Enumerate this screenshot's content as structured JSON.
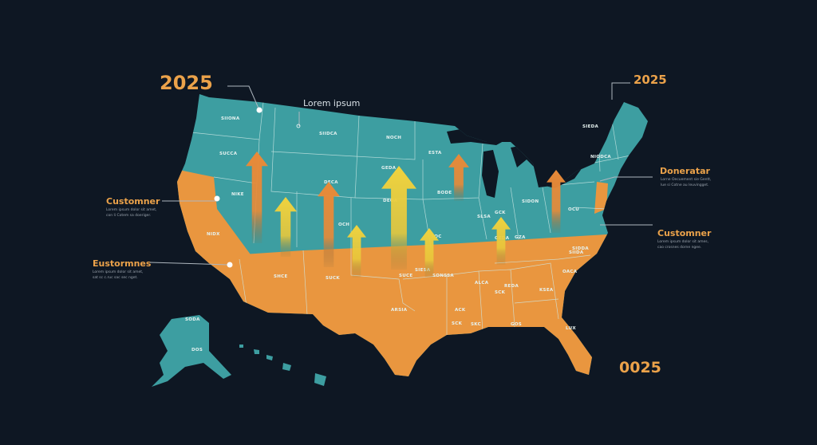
{
  "colors": {
    "background": "#0e1723",
    "north": "#3d9ea1",
    "south": "#e9963f",
    "arrow_orange": "#e88a38",
    "arrow_yellow": "#f0d33e",
    "text_accent": "#eba24a"
  },
  "annotations": {
    "top_left_year": "2025",
    "top_right_year": "2025",
    "bottom_right_year": "0025",
    "lorem": "Lorem ipsum",
    "left_1": {
      "title": "Customner",
      "lines": [
        "Lorem ipsum dolor sit amet,",
        "con li Cotem sa doeriger."
      ]
    },
    "left_2": {
      "title": "Eustormnes",
      "lines": [
        "Lorem ipsum dolor sit amet,",
        "sat sc c.ruc sac sec nget."
      ]
    },
    "right_1": {
      "title": "Doneratar",
      "lines": [
        "Lorne Oecuement sie Gentt,",
        "lue si Cotne au leuvingget."
      ]
    },
    "right_2": {
      "title": "Customner",
      "lines": [
        "Lorem ipsum dolor sit ames,",
        "cao crosnes dorne ngee."
      ]
    }
  },
  "state_labels": [
    "SIIONA",
    "SUCCA",
    "SIIDCA",
    "NOCH",
    "ESTA",
    "SIEDA",
    "NIODCA",
    "DECA",
    "GEDA",
    "DEOA",
    "BODE",
    "SIDON",
    "OCH",
    "GCK",
    "SLSA",
    "GEDA",
    "GZA",
    "SIDDA",
    "OCU",
    "NIKE",
    "NIDX",
    "SHCE",
    "SUCK",
    "SUCE",
    "SONSSA",
    "SIESA",
    "ALCA",
    "OACA",
    "SIIDA",
    "KSEA",
    "REDA",
    "ACK",
    "SCK",
    "SOC",
    "ARSIA",
    "SKC",
    "GOS",
    "LUX",
    "SODA",
    "DOS",
    "SCK"
  ],
  "legend": null
}
